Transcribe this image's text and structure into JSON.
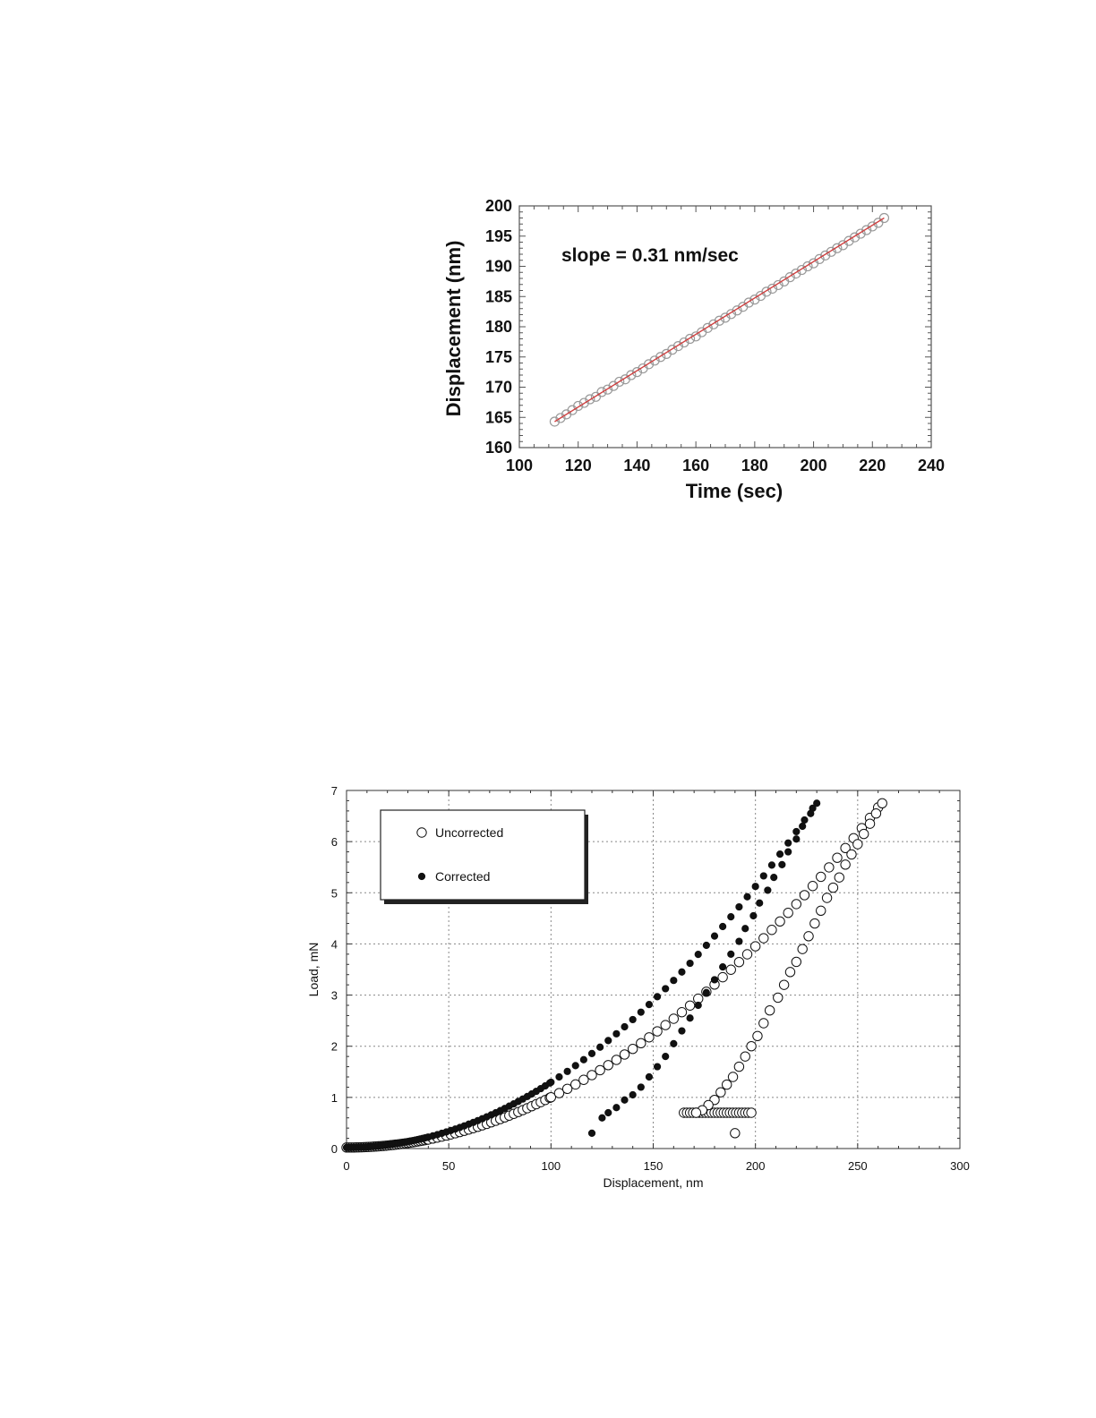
{
  "chart_data": [
    {
      "type": "scatter",
      "title": "",
      "xlabel": "Time (sec)",
      "ylabel": "Displacement (nm)",
      "xlim": [
        100,
        240
      ],
      "ylim": [
        160,
        200
      ],
      "xticks": [
        "100",
        "120",
        "140",
        "160",
        "180",
        "200",
        "220",
        "240"
      ],
      "yticks": [
        "160",
        "165",
        "170",
        "175",
        "180",
        "185",
        "190",
        "195",
        "200"
      ],
      "annotation": "slope = 0.31 nm/sec",
      "grid": false,
      "colors": {
        "points": "#999999",
        "fit_line": "#d04040"
      },
      "series": [
        {
          "marker": "open-circle",
          "x": [
            112,
            114,
            116,
            118,
            120,
            122,
            124,
            126,
            128,
            130,
            132,
            134,
            136,
            138,
            140,
            142,
            144,
            146,
            148,
            150,
            152,
            154,
            156,
            158,
            160,
            162,
            164,
            166,
            168,
            170,
            172,
            174,
            176,
            178,
            180,
            182,
            184,
            186,
            188,
            190,
            192,
            194,
            196,
            198,
            200,
            202,
            204,
            206,
            208,
            210,
            212,
            214,
            216,
            218,
            220,
            222,
            224
          ],
          "y": [
            164.3,
            164.9,
            165.5,
            166.2,
            166.9,
            167.4,
            168.0,
            168.4,
            169.2,
            169.6,
            170.2,
            170.9,
            171.3,
            172.0,
            172.5,
            173.1,
            173.8,
            174.4,
            175.0,
            175.5,
            176.2,
            176.8,
            177.4,
            178.0,
            178.4,
            179.1,
            179.8,
            180.4,
            181.0,
            181.5,
            182.1,
            182.7,
            183.3,
            184.0,
            184.5,
            185.1,
            185.8,
            186.3,
            186.9,
            187.5,
            188.2,
            188.8,
            189.4,
            190.0,
            190.5,
            191.2,
            191.8,
            192.4,
            193.0,
            193.5,
            194.2,
            194.8,
            195.4,
            196.0,
            196.6,
            197.2,
            198.0
          ]
        },
        {
          "marker": "line",
          "x": [
            112,
            224
          ],
          "y": [
            164.3,
            198.0
          ]
        }
      ]
    },
    {
      "type": "scatter",
      "title": "",
      "xlabel": "Displacement, nm",
      "ylabel": "Load, mN",
      "xlim": [
        0,
        300
      ],
      "ylim": [
        0,
        7
      ],
      "xticks": [
        "0",
        "50",
        "100",
        "150",
        "200",
        "250",
        "300"
      ],
      "yticks": [
        "0",
        "1",
        "2",
        "3",
        "4",
        "5",
        "6",
        "7"
      ],
      "grid": true,
      "legend": "top-left",
      "series": [
        {
          "name": "Uncorrected",
          "marker": "open-circle",
          "loading": {
            "x_max": 262,
            "y_max": 6.75,
            "power": 2
          },
          "hold": {
            "x_start": 165,
            "x_end": 198,
            "y": 0.7
          },
          "unloading": {
            "x": [
              262,
              259,
              256,
              253,
              250,
              247,
              244,
              241,
              238,
              235,
              232,
              229,
              226,
              223,
              220,
              217,
              214,
              211,
              207,
              204,
              201,
              198,
              195,
              192,
              189,
              186,
              183,
              180,
              177,
              174,
              171
            ],
            "y": [
              6.75,
              6.55,
              6.35,
              6.15,
              5.95,
              5.75,
              5.55,
              5.3,
              5.1,
              4.9,
              4.65,
              4.4,
              4.15,
              3.9,
              3.65,
              3.45,
              3.2,
              2.95,
              2.7,
              2.45,
              2.2,
              2.0,
              1.8,
              1.6,
              1.4,
              1.25,
              1.1,
              0.95,
              0.85,
              0.75,
              0.7
            ]
          },
          "extra_points": {
            "x": [
              190
            ],
            "y": [
              0.3
            ]
          }
        },
        {
          "name": "Corrected",
          "marker": "filled-circle",
          "loading": {
            "x_max": 230,
            "y_max": 6.75,
            "power": 2
          },
          "unloading": {
            "x": [
              230,
              227,
              223,
              220,
              216,
              213,
              209,
              206,
              202,
              199,
              195,
              192,
              188,
              184,
              180,
              176,
              172,
              168,
              164,
              160,
              156,
              152,
              148,
              144,
              140,
              136,
              132,
              128,
              125,
              120
            ],
            "y": [
              6.75,
              6.55,
              6.3,
              6.05,
              5.8,
              5.55,
              5.3,
              5.05,
              4.8,
              4.55,
              4.3,
              4.05,
              3.8,
              3.55,
              3.3,
              3.05,
              2.8,
              2.55,
              2.3,
              2.05,
              1.8,
              1.6,
              1.4,
              1.2,
              1.05,
              0.95,
              0.8,
              0.7,
              0.6,
              0.3
            ]
          }
        }
      ]
    }
  ]
}
